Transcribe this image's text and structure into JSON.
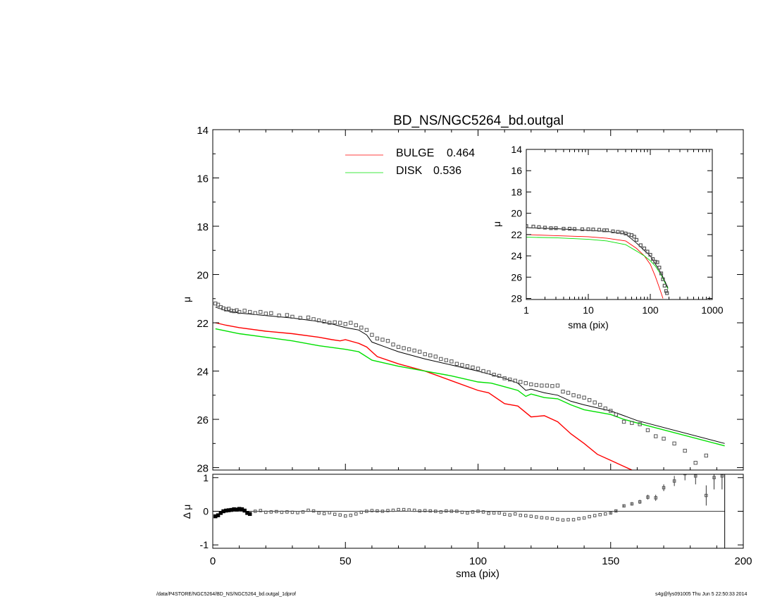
{
  "title": "BD_NS/NGC5264_bd.outgal",
  "footer": {
    "left": "/data/P4STORE/NGC5264/BD_NS/NGC5264_bd.outgal_1dprof",
    "right": "s4g@fys091005  Thu Jun  5 22:50:33 2014"
  },
  "colors": {
    "bulge": "#ff0000",
    "disk": "#00e000",
    "total": "#000000",
    "data": "#555555"
  },
  "chart_data": [
    {
      "id": "main",
      "type": "line",
      "title": "BD_NS/NGC5264_bd.outgal",
      "xlabel": "",
      "ylabel": "μ",
      "xlim": [
        0,
        200
      ],
      "ylim": [
        28,
        14
      ],
      "y_reversed": true,
      "yticks": [
        "14",
        "16",
        "18",
        "20",
        "22",
        "24",
        "26",
        "28"
      ],
      "legend": [
        {
          "name": "BULGE",
          "value": "0.464",
          "color": "#ff0000"
        },
        {
          "name": "DISK",
          "value": "0.536",
          "color": "#00e000"
        }
      ],
      "series": [
        {
          "name": "BULGE",
          "color": "#ff0000",
          "x": [
            1,
            5,
            10,
            20,
            30,
            40,
            45,
            48,
            50,
            55,
            58,
            62,
            70,
            80,
            90,
            100,
            104,
            110,
            115,
            120,
            125,
            130,
            135,
            140,
            145,
            150,
            155,
            158
          ],
          "y": [
            22.0,
            22.1,
            22.2,
            22.35,
            22.45,
            22.6,
            22.7,
            22.75,
            22.7,
            22.85,
            23.0,
            23.4,
            23.7,
            24.0,
            24.4,
            24.8,
            24.9,
            25.35,
            25.45,
            25.9,
            25.85,
            26.1,
            26.6,
            27.0,
            27.45,
            27.7,
            27.95,
            28.1
          ]
        },
        {
          "name": "DISK",
          "color": "#00e000",
          "x": [
            1,
            10,
            20,
            30,
            40,
            50,
            55,
            60,
            70,
            80,
            90,
            100,
            105,
            110,
            115,
            118,
            120,
            125,
            130,
            135,
            140,
            150,
            155,
            160,
            193
          ],
          "y": [
            22.25,
            22.45,
            22.6,
            22.75,
            22.95,
            23.1,
            23.2,
            23.55,
            23.8,
            24.0,
            24.2,
            24.45,
            24.5,
            24.65,
            24.8,
            25.05,
            24.95,
            25.1,
            25.15,
            25.4,
            25.6,
            25.8,
            26.0,
            26.15,
            27.1
          ]
        },
        {
          "name": "TOTAL",
          "color": "#000000",
          "x": [
            1,
            5,
            10,
            20,
            30,
            40,
            45,
            50,
            55,
            58,
            60,
            65,
            70,
            80,
            90,
            100,
            110,
            115,
            118,
            120,
            125,
            130,
            135,
            140,
            150,
            155,
            160,
            193
          ],
          "y": [
            21.35,
            21.5,
            21.6,
            21.7,
            21.8,
            21.95,
            22.05,
            22.2,
            22.3,
            22.5,
            22.8,
            23.0,
            23.2,
            23.5,
            23.75,
            24.0,
            24.3,
            24.5,
            24.8,
            24.75,
            24.9,
            25.0,
            25.25,
            25.4,
            25.65,
            25.85,
            26.05,
            27.0
          ]
        },
        {
          "name": "DATA",
          "color": "#555555",
          "style": "markers",
          "x": [
            1,
            2,
            3,
            4,
            5,
            6,
            7,
            8,
            9,
            10,
            12,
            14,
            16,
            18,
            20,
            22,
            25,
            28,
            30,
            33,
            36,
            38,
            40,
            42,
            44,
            46,
            48,
            50,
            52,
            54,
            56,
            58,
            60,
            62,
            64,
            66,
            68,
            70,
            72,
            74,
            76,
            78,
            80,
            82,
            84,
            86,
            88,
            90,
            92,
            94,
            96,
            98,
            100,
            102,
            104,
            106,
            108,
            110,
            112,
            114,
            116,
            118,
            120,
            122,
            124,
            126,
            128,
            130,
            132,
            134,
            136,
            138,
            140,
            142,
            144,
            146,
            148,
            150,
            152,
            155,
            158,
            161,
            164,
            167,
            170,
            174,
            178,
            182,
            186
          ],
          "y": [
            21.2,
            21.25,
            21.35,
            21.4,
            21.45,
            21.42,
            21.5,
            21.52,
            21.48,
            21.55,
            21.5,
            21.55,
            21.6,
            21.55,
            21.62,
            21.6,
            21.7,
            21.68,
            21.75,
            21.8,
            21.78,
            21.85,
            21.9,
            21.95,
            22.0,
            21.98,
            22.0,
            22.05,
            22.0,
            22.1,
            22.2,
            22.3,
            22.5,
            22.65,
            22.7,
            22.75,
            22.9,
            23.0,
            23.05,
            23.1,
            23.15,
            23.2,
            23.3,
            23.35,
            23.4,
            23.5,
            23.55,
            23.6,
            23.7,
            23.75,
            23.8,
            23.85,
            23.9,
            24.0,
            24.05,
            24.15,
            24.2,
            24.3,
            24.35,
            24.4,
            24.45,
            24.5,
            24.55,
            24.58,
            24.6,
            24.6,
            24.62,
            24.6,
            24.85,
            24.9,
            25.0,
            25.05,
            25.1,
            25.2,
            25.3,
            25.4,
            25.55,
            25.65,
            25.8,
            26.1,
            26.15,
            26.2,
            26.45,
            26.7,
            26.8,
            27.0,
            27.3,
            27.8,
            27.5
          ]
        }
      ]
    },
    {
      "id": "inset",
      "type": "line",
      "xlabel": "sma (pix)",
      "ylabel": "μ",
      "xscale": "log",
      "xlim": [
        1,
        1000
      ],
      "ylim": [
        28,
        14
      ],
      "y_reversed": true,
      "xticks": [
        "1",
        "10",
        "100",
        "1000"
      ],
      "yticks": [
        "14",
        "16",
        "18",
        "20",
        "22",
        "24",
        "26",
        "28"
      ],
      "series": [
        {
          "name": "BULGE",
          "color": "#ff0000",
          "x": [
            1,
            3,
            10,
            20,
            40,
            60,
            80,
            100,
            120,
            140,
            160
          ],
          "y": [
            22.0,
            22.1,
            22.2,
            22.35,
            22.6,
            23.3,
            24.0,
            24.8,
            25.9,
            27.0,
            28.0
          ]
        },
        {
          "name": "DISK",
          "color": "#00e000",
          "x": [
            1,
            3,
            10,
            20,
            40,
            60,
            80,
            100,
            120,
            150,
            193
          ],
          "y": [
            22.25,
            22.3,
            22.45,
            22.6,
            22.95,
            23.55,
            24.0,
            24.45,
            24.95,
            25.8,
            27.1
          ]
        },
        {
          "name": "TOTAL",
          "color": "#000000",
          "x": [
            1,
            3,
            10,
            20,
            40,
            60,
            80,
            100,
            120,
            150,
            193
          ],
          "y": [
            21.35,
            21.45,
            21.6,
            21.7,
            21.95,
            22.8,
            23.5,
            24.0,
            24.75,
            25.65,
            27.0
          ]
        },
        {
          "name": "DATA",
          "color": "#555555",
          "style": "markers",
          "x": [
            1,
            1.3,
            1.6,
            2,
            2.5,
            3,
            4,
            5,
            6,
            8,
            10,
            12,
            15,
            18,
            20,
            25,
            30,
            35,
            40,
            45,
            50,
            55,
            60,
            70,
            80,
            90,
            100,
            110,
            120,
            130,
            140,
            150,
            160,
            170,
            180,
            186
          ],
          "y": [
            21.2,
            21.25,
            21.3,
            21.35,
            21.4,
            21.4,
            21.45,
            21.45,
            21.48,
            21.5,
            21.5,
            21.52,
            21.55,
            21.6,
            21.6,
            21.7,
            21.75,
            21.8,
            21.9,
            22.0,
            22.05,
            22.2,
            22.5,
            23.0,
            23.3,
            23.6,
            23.9,
            24.3,
            24.55,
            24.6,
            25.1,
            25.65,
            26.2,
            26.8,
            27.3,
            27.5
          ]
        }
      ]
    },
    {
      "id": "residual",
      "type": "scatter",
      "xlabel": "sma (pix)",
      "ylabel": "Δ μ",
      "xlim": [
        0,
        200
      ],
      "ylim": [
        -1.1,
        1.1
      ],
      "xticks": [
        "0",
        "50",
        "100",
        "150",
        "200"
      ],
      "yticks": [
        "1",
        "0",
        "-1"
      ],
      "series": [
        {
          "name": "residual",
          "color": "#555555",
          "x": [
            1,
            2,
            3,
            4,
            5,
            6,
            7,
            8,
            9,
            10,
            11,
            12,
            13,
            14,
            16,
            18,
            20,
            22,
            24,
            26,
            28,
            30,
            32,
            34,
            36,
            38,
            40,
            42,
            44,
            46,
            48,
            50,
            52,
            54,
            56,
            58,
            60,
            62,
            64,
            66,
            68,
            70,
            72,
            74,
            76,
            78,
            80,
            82,
            84,
            86,
            88,
            90,
            92,
            94,
            96,
            98,
            100,
            102,
            104,
            106,
            108,
            110,
            112,
            114,
            116,
            118,
            120,
            122,
            124,
            126,
            128,
            130,
            132,
            134,
            136,
            138,
            140,
            142,
            144,
            146,
            148,
            150,
            152,
            155,
            158,
            161,
            164,
            167,
            170,
            174,
            178,
            182,
            186,
            189,
            192
          ],
          "y": [
            -0.15,
            -0.12,
            -0.05,
            0.0,
            0.02,
            0.03,
            0.04,
            0.06,
            0.05,
            0.07,
            0.06,
            0.02,
            -0.05,
            -0.08,
            0.0,
            0.02,
            -0.03,
            -0.02,
            -0.01,
            -0.03,
            -0.02,
            -0.03,
            -0.04,
            -0.02,
            0.03,
            0.01,
            -0.05,
            -0.07,
            -0.04,
            -0.09,
            -0.11,
            -0.14,
            -0.12,
            -0.08,
            -0.03,
            0.0,
            0.02,
            0.01,
            0.0,
            0.02,
            0.03,
            0.05,
            0.05,
            0.04,
            0.03,
            0.01,
            0.02,
            0.01,
            0.0,
            -0.02,
            0.01,
            0.0,
            0.0,
            -0.03,
            -0.05,
            -0.02,
            0.0,
            -0.02,
            -0.06,
            -0.05,
            -0.05,
            -0.09,
            -0.11,
            -0.08,
            -0.12,
            -0.13,
            -0.15,
            -0.17,
            -0.19,
            -0.2,
            -0.22,
            -0.24,
            -0.26,
            -0.25,
            -0.25,
            -0.22,
            -0.2,
            -0.16,
            -0.13,
            -0.1,
            -0.08,
            -0.05,
            0.01,
            0.16,
            0.22,
            0.28,
            0.42,
            0.4,
            0.7,
            0.9,
            1.12,
            1.05,
            0.47,
            1.0,
            1.05
          ],
          "err": [
            0.02,
            0.02,
            0.02,
            0.02,
            0.02,
            0.02,
            0.02,
            0.02,
            0.02,
            0.02,
            0.02,
            0.02,
            0.02,
            0.02,
            0.02,
            0.02,
            0.02,
            0.02,
            0.02,
            0.02,
            0.02,
            0.02,
            0.02,
            0.02,
            0.02,
            0.02,
            0.02,
            0.02,
            0.02,
            0.02,
            0.02,
            0.02,
            0.02,
            0.02,
            0.02,
            0.02,
            0.02,
            0.02,
            0.02,
            0.02,
            0.02,
            0.02,
            0.02,
            0.02,
            0.02,
            0.02,
            0.02,
            0.02,
            0.02,
            0.02,
            0.02,
            0.02,
            0.02,
            0.02,
            0.02,
            0.02,
            0.02,
            0.02,
            0.02,
            0.02,
            0.02,
            0.02,
            0.02,
            0.02,
            0.02,
            0.02,
            0.02,
            0.02,
            0.02,
            0.02,
            0.02,
            0.02,
            0.02,
            0.02,
            0.02,
            0.02,
            0.02,
            0.02,
            0.02,
            0.02,
            0.02,
            0.03,
            0.03,
            0.04,
            0.05,
            0.06,
            0.07,
            0.09,
            0.1,
            0.15,
            0.2,
            0.25,
            0.3,
            0.35,
            0.4
          ]
        }
      ]
    }
  ]
}
